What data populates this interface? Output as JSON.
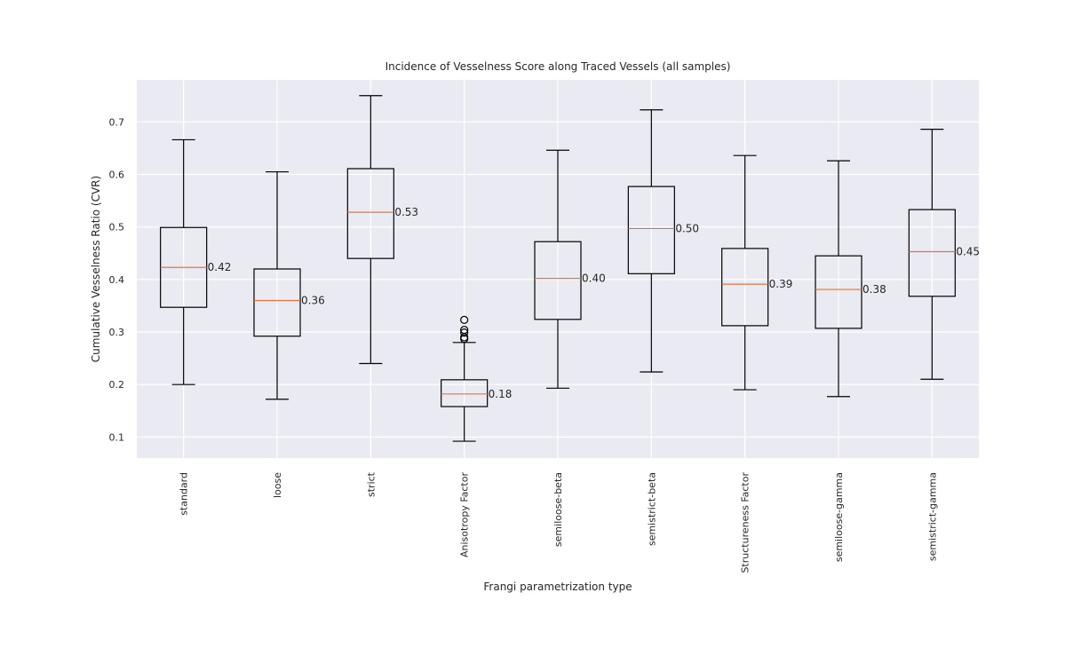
{
  "chart_data": {
    "type": "box",
    "title": "Incidence of Vesselness Score along Traced Vessels (all samples)",
    "xlabel": "Frangi parametrization type",
    "ylabel": "Cumulative Vesselness Ratio (CVR)",
    "ylim": [
      0.06,
      0.78
    ],
    "yticks": [
      0.1,
      0.2,
      0.3,
      0.4,
      0.5,
      0.6,
      0.7
    ],
    "ytick_labels": [
      "0.1",
      "0.2",
      "0.3",
      "0.4",
      "0.5",
      "0.6",
      "0.7"
    ],
    "grid": true,
    "colors": {
      "plot_background": "#eaeaf2",
      "grid": "#ffffff",
      "box": "#000000",
      "median": "#e8743b"
    },
    "categories": [
      "standard",
      "loose",
      "strict",
      "Anisotropy Factor",
      "semiloose-beta",
      "semistrict-beta",
      "Structureness Factor",
      "semiloose-gamma",
      "semistrict-gamma"
    ],
    "boxes": [
      {
        "whisker_low": 0.2,
        "q1": 0.347,
        "median": 0.423,
        "q3": 0.499,
        "whisker_high": 0.666,
        "median_label": "0.42",
        "outliers": []
      },
      {
        "whisker_low": 0.172,
        "q1": 0.292,
        "median": 0.36,
        "q3": 0.42,
        "whisker_high": 0.605,
        "median_label": "0.36",
        "outliers": []
      },
      {
        "whisker_low": 0.24,
        "q1": 0.44,
        "median": 0.528,
        "q3": 0.611,
        "whisker_high": 0.75,
        "median_label": "0.53",
        "outliers": []
      },
      {
        "whisker_low": 0.092,
        "q1": 0.158,
        "median": 0.182,
        "q3": 0.209,
        "whisker_high": 0.28,
        "median_label": "0.18",
        "outliers": [
          0.287,
          0.29,
          0.299,
          0.304,
          0.323
        ]
      },
      {
        "whisker_low": 0.193,
        "q1": 0.324,
        "median": 0.402,
        "q3": 0.472,
        "whisker_high": 0.646,
        "median_label": "0.40",
        "outliers": []
      },
      {
        "whisker_low": 0.224,
        "q1": 0.411,
        "median": 0.497,
        "q3": 0.577,
        "whisker_high": 0.723,
        "median_label": "0.50",
        "outliers": []
      },
      {
        "whisker_low": 0.19,
        "q1": 0.312,
        "median": 0.391,
        "q3": 0.459,
        "whisker_high": 0.636,
        "median_label": "0.39",
        "outliers": []
      },
      {
        "whisker_low": 0.177,
        "q1": 0.307,
        "median": 0.381,
        "q3": 0.445,
        "whisker_high": 0.626,
        "median_label": "0.38",
        "outliers": []
      },
      {
        "whisker_low": 0.21,
        "q1": 0.368,
        "median": 0.453,
        "q3": 0.533,
        "whisker_high": 0.686,
        "median_label": "0.45",
        "outliers": []
      }
    ]
  }
}
